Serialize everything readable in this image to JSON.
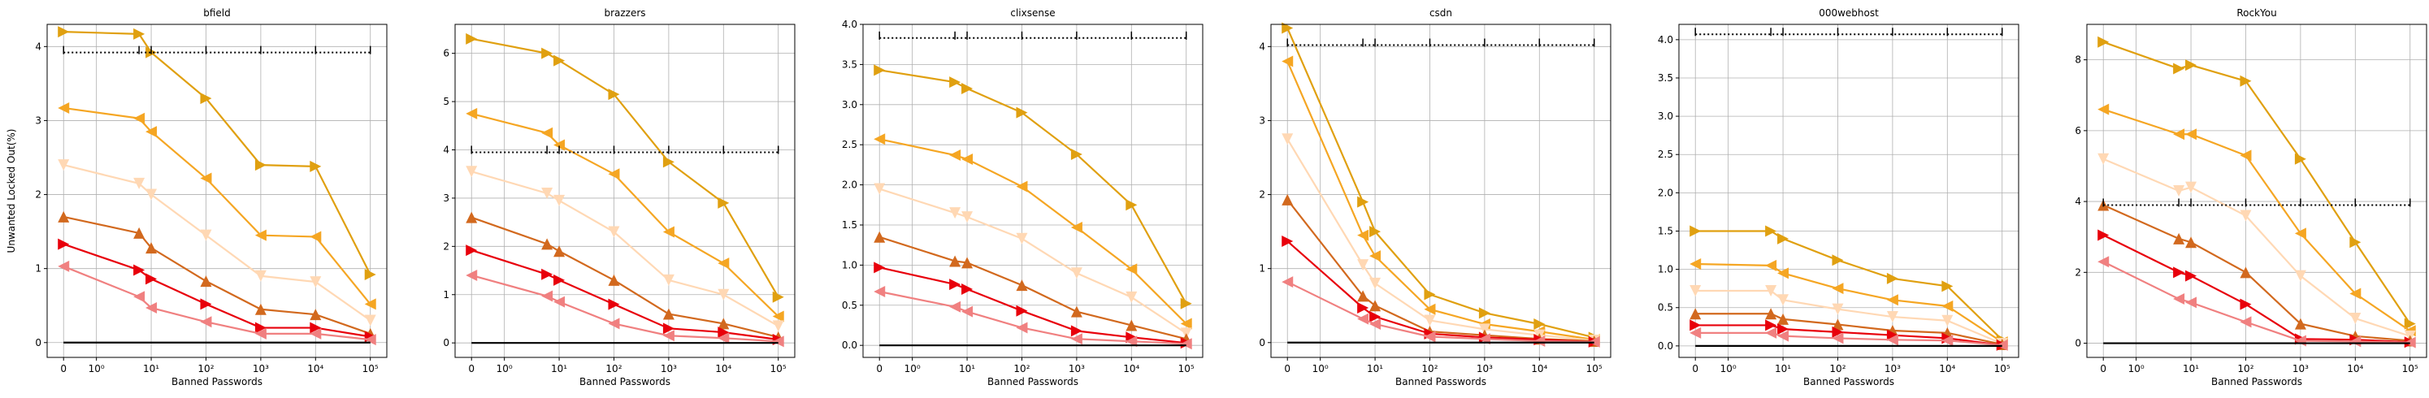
{
  "chart_data": [
    {
      "type": "line",
      "title": "bfield",
      "x_label": "Banned Passwords",
      "y_label": "Unwanted Locked Out(%)",
      "xscale": "symlog",
      "grid": true,
      "x": [
        0,
        6,
        10,
        100,
        1000,
        10000,
        100000
      ],
      "xlim": [
        -0.5,
        200000
      ],
      "xticks": [
        0,
        {
          "value": 1,
          "label": "10⁰"
        },
        {
          "value": 10,
          "label": "10¹"
        },
        {
          "value": 100,
          "label": "10²"
        },
        {
          "value": 1000,
          "label": "10³"
        },
        {
          "value": 10000,
          "label": "10⁴"
        },
        {
          "value": 100000,
          "label": "10⁵"
        }
      ],
      "ylim": [
        -0.2,
        4.3
      ],
      "yticks": [
        0,
        1,
        2,
        3,
        4
      ],
      "series": [
        {
          "color": "#e0a010",
          "marker": ">",
          "linestyle": "solid",
          "values": [
            4.2,
            4.17,
            3.92,
            3.3,
            2.4,
            2.38,
            0.92
          ]
        },
        {
          "color": "#f5a623",
          "marker": "<",
          "linestyle": "solid",
          "values": [
            3.17,
            3.03,
            2.85,
            2.22,
            1.45,
            1.43,
            0.52
          ]
        },
        {
          "color": "#ffd8b4",
          "marker": "v",
          "linestyle": "solid",
          "values": [
            2.4,
            2.15,
            2.0,
            1.45,
            0.9,
            0.82,
            0.3
          ]
        },
        {
          "color": "#d2691e",
          "marker": "^",
          "linestyle": "solid",
          "values": [
            1.7,
            1.48,
            1.28,
            0.83,
            0.45,
            0.38,
            0.12
          ]
        },
        {
          "color": "#e8000b",
          "marker": ">",
          "linestyle": "solid",
          "values": [
            1.33,
            0.98,
            0.86,
            0.52,
            0.2,
            0.2,
            0.08
          ]
        },
        {
          "color": "#f08080",
          "marker": "<",
          "linestyle": "solid",
          "values": [
            1.03,
            0.62,
            0.47,
            0.28,
            0.12,
            0.12,
            0.04
          ]
        },
        {
          "color": "#000000",
          "marker": "|",
          "linestyle": "dotted",
          "values": [
            3.92,
            3.92,
            3.92,
            3.92,
            3.92,
            3.92,
            3.92
          ]
        },
        {
          "color": "#000000",
          "marker": "none",
          "linestyle": "solid",
          "values": [
            0,
            0,
            0,
            0,
            0,
            0,
            0
          ]
        }
      ]
    },
    {
      "type": "line",
      "title": "brazzers",
      "x_label": "Banned Passwords",
      "xscale": "symlog",
      "grid": true,
      "x": [
        0,
        6,
        10,
        100,
        1000,
        10000,
        100000
      ],
      "xlim": [
        -0.5,
        200000
      ],
      "xticks": [
        0,
        {
          "value": 1,
          "label": "10⁰"
        },
        {
          "value": 10,
          "label": "10¹"
        },
        {
          "value": 100,
          "label": "10²"
        },
        {
          "value": 1000,
          "label": "10³"
        },
        {
          "value": 10000,
          "label": "10⁴"
        },
        {
          "value": 100000,
          "label": "10⁵"
        }
      ],
      "ylim": [
        -0.3,
        6.6
      ],
      "yticks": [
        0,
        1,
        2,
        3,
        4,
        5,
        6
      ],
      "series": [
        {
          "color": "#e0a010",
          "marker": ">",
          "linestyle": "solid",
          "values": [
            6.3,
            6.0,
            5.85,
            5.15,
            3.75,
            2.9,
            0.95
          ]
        },
        {
          "color": "#f5a623",
          "marker": "<",
          "linestyle": "solid",
          "values": [
            4.75,
            4.35,
            4.1,
            3.5,
            2.3,
            1.65,
            0.55
          ]
        },
        {
          "color": "#ffd8b4",
          "marker": "v",
          "linestyle": "solid",
          "values": [
            3.55,
            3.1,
            2.95,
            2.3,
            1.3,
            1.0,
            0.35
          ]
        },
        {
          "color": "#d2691e",
          "marker": "^",
          "linestyle": "solid",
          "values": [
            2.6,
            2.05,
            1.9,
            1.3,
            0.6,
            0.4,
            0.12
          ]
        },
        {
          "color": "#e8000b",
          "marker": ">",
          "linestyle": "solid",
          "values": [
            1.92,
            1.42,
            1.3,
            0.8,
            0.3,
            0.22,
            0.07
          ]
        },
        {
          "color": "#f08080",
          "marker": "<",
          "linestyle": "solid",
          "values": [
            1.4,
            0.97,
            0.85,
            0.4,
            0.15,
            0.1,
            0.03
          ]
        },
        {
          "color": "#000000",
          "marker": "|",
          "linestyle": "dotted",
          "values": [
            3.95,
            3.95,
            3.95,
            3.95,
            3.95,
            3.95,
            3.95
          ]
        },
        {
          "color": "#000000",
          "marker": "none",
          "linestyle": "solid",
          "values": [
            0,
            0,
            0,
            0,
            0,
            0,
            0
          ]
        }
      ]
    },
    {
      "type": "line",
      "title": "clixsense",
      "x_label": "Banned Passwords",
      "xscale": "symlog",
      "grid": true,
      "x": [
        0,
        6,
        10,
        100,
        1000,
        10000,
        100000
      ],
      "xlim": [
        -0.5,
        200000
      ],
      "xticks": [
        0,
        {
          "value": 1,
          "label": "10⁰"
        },
        {
          "value": 10,
          "label": "10¹"
        },
        {
          "value": 100,
          "label": "10²"
        },
        {
          "value": 1000,
          "label": "10³"
        },
        {
          "value": 10000,
          "label": "10⁴"
        },
        {
          "value": 100000,
          "label": "10⁵"
        }
      ],
      "ylim": [
        -0.15,
        4.0
      ],
      "yticks": [
        {
          "value": 0,
          "label": "0.0"
        },
        0.5,
        {
          "value": 1,
          "label": "1.0"
        },
        1.5,
        {
          "value": 2,
          "label": "2.0"
        },
        2.5,
        {
          "value": 3,
          "label": "3.0"
        },
        3.5,
        {
          "value": 4,
          "label": "4.0"
        }
      ],
      "series": [
        {
          "color": "#e0a010",
          "marker": ">",
          "linestyle": "solid",
          "values": [
            3.43,
            3.28,
            3.2,
            2.9,
            2.38,
            1.75,
            0.52
          ]
        },
        {
          "color": "#f5a623",
          "marker": "<",
          "linestyle": "solid",
          "values": [
            2.57,
            2.37,
            2.32,
            1.98,
            1.47,
            0.95,
            0.27
          ]
        },
        {
          "color": "#ffd8b4",
          "marker": "v",
          "linestyle": "solid",
          "values": [
            1.95,
            1.65,
            1.6,
            1.33,
            0.9,
            0.6,
            0.15
          ]
        },
        {
          "color": "#d2691e",
          "marker": "^",
          "linestyle": "solid",
          "values": [
            1.35,
            1.05,
            1.03,
            0.75,
            0.42,
            0.25,
            0.08
          ]
        },
        {
          "color": "#e8000b",
          "marker": ">",
          "linestyle": "solid",
          "values": [
            0.97,
            0.76,
            0.7,
            0.43,
            0.18,
            0.1,
            0.03
          ]
        },
        {
          "color": "#f08080",
          "marker": "<",
          "linestyle": "solid",
          "values": [
            0.67,
            0.48,
            0.42,
            0.22,
            0.08,
            0.05,
            0.02
          ]
        },
        {
          "color": "#000000",
          "marker": "|",
          "linestyle": "dotted",
          "values": [
            3.83,
            3.83,
            3.83,
            3.83,
            3.83,
            3.83,
            3.83
          ]
        },
        {
          "color": "#000000",
          "marker": "none",
          "linestyle": "solid",
          "values": [
            0,
            0,
            0,
            0,
            0,
            0,
            0
          ]
        }
      ]
    },
    {
      "type": "line",
      "title": "csdn",
      "x_label": "Banned Passwords",
      "xscale": "symlog",
      "grid": true,
      "x": [
        0,
        6,
        10,
        100,
        1000,
        10000,
        100000
      ],
      "xlim": [
        -0.5,
        200000
      ],
      "xticks": [
        0,
        {
          "value": 1,
          "label": "10⁰"
        },
        {
          "value": 10,
          "label": "10¹"
        },
        {
          "value": 100,
          "label": "10²"
        },
        {
          "value": 1000,
          "label": "10³"
        },
        {
          "value": 10000,
          "label": "10⁴"
        },
        {
          "value": 100000,
          "label": "10⁵"
        }
      ],
      "ylim": [
        -0.2,
        4.3
      ],
      "yticks": [
        0,
        1,
        2,
        3,
        4
      ],
      "series": [
        {
          "color": "#e0a010",
          "marker": ">",
          "linestyle": "solid",
          "values": [
            4.25,
            1.9,
            1.5,
            0.65,
            0.4,
            0.25,
            0.07
          ]
        },
        {
          "color": "#f5a623",
          "marker": "<",
          "linestyle": "solid",
          "values": [
            3.8,
            1.45,
            1.17,
            0.45,
            0.25,
            0.15,
            0.04
          ]
        },
        {
          "color": "#ffd8b4",
          "marker": "v",
          "linestyle": "solid",
          "values": [
            2.75,
            1.05,
            0.8,
            0.3,
            0.18,
            0.1,
            0.03
          ]
        },
        {
          "color": "#d2691e",
          "marker": "^",
          "linestyle": "solid",
          "values": [
            1.93,
            0.63,
            0.5,
            0.15,
            0.1,
            0.05,
            0.02
          ]
        },
        {
          "color": "#e8000b",
          "marker": ">",
          "linestyle": "solid",
          "values": [
            1.37,
            0.47,
            0.35,
            0.12,
            0.07,
            0.04,
            0.01
          ]
        },
        {
          "color": "#f08080",
          "marker": "<",
          "linestyle": "solid",
          "values": [
            0.82,
            0.32,
            0.25,
            0.08,
            0.05,
            0.02,
            0.01
          ]
        },
        {
          "color": "#000000",
          "marker": "|",
          "linestyle": "dotted",
          "values": [
            4.02,
            4.02,
            4.02,
            4.02,
            4.02,
            4.02,
            4.02
          ]
        },
        {
          "color": "#000000",
          "marker": "none",
          "linestyle": "solid",
          "values": [
            0,
            0,
            0,
            0,
            0,
            0,
            0
          ]
        }
      ]
    },
    {
      "type": "line",
      "title": "000webhost",
      "x_label": "Banned Passwords",
      "xscale": "symlog",
      "grid": true,
      "x": [
        0,
        6,
        10,
        100,
        1000,
        10000,
        100000
      ],
      "xlim": [
        -0.5,
        200000
      ],
      "xticks": [
        0,
        {
          "value": 1,
          "label": "10⁰"
        },
        {
          "value": 10,
          "label": "10¹"
        },
        {
          "value": 100,
          "label": "10²"
        },
        {
          "value": 1000,
          "label": "10³"
        },
        {
          "value": 10000,
          "label": "10⁴"
        },
        {
          "value": 100000,
          "label": "10⁵"
        }
      ],
      "ylim": [
        -0.15,
        4.2
      ],
      "yticks": [
        {
          "value": 0,
          "label": "0.0"
        },
        0.5,
        {
          "value": 1,
          "label": "1.0"
        },
        1.5,
        {
          "value": 2,
          "label": "2.0"
        },
        2.5,
        {
          "value": 3,
          "label": "3.0"
        },
        3.5,
        {
          "value": 4,
          "label": "4.0"
        }
      ],
      "series": [
        {
          "color": "#e0a010",
          "marker": ">",
          "linestyle": "solid",
          "values": [
            1.5,
            1.5,
            1.4,
            1.12,
            0.88,
            0.78,
            0.08
          ]
        },
        {
          "color": "#f5a623",
          "marker": "<",
          "linestyle": "solid",
          "values": [
            1.07,
            1.05,
            0.95,
            0.75,
            0.6,
            0.52,
            0.05
          ]
        },
        {
          "color": "#ffd8b4",
          "marker": "v",
          "linestyle": "solid",
          "values": [
            0.72,
            0.72,
            0.6,
            0.48,
            0.38,
            0.33,
            0.03
          ]
        },
        {
          "color": "#d2691e",
          "marker": "^",
          "linestyle": "solid",
          "values": [
            0.42,
            0.42,
            0.35,
            0.28,
            0.2,
            0.17,
            0.02
          ]
        },
        {
          "color": "#e8000b",
          "marker": ">",
          "linestyle": "solid",
          "values": [
            0.27,
            0.27,
            0.22,
            0.18,
            0.14,
            0.1,
            0.01
          ]
        },
        {
          "color": "#f08080",
          "marker": "<",
          "linestyle": "solid",
          "values": [
            0.17,
            0.17,
            0.13,
            0.1,
            0.08,
            0.07,
            0.01
          ]
        },
        {
          "color": "#000000",
          "marker": "|",
          "linestyle": "dotted",
          "values": [
            4.07,
            4.07,
            4.07,
            4.07,
            4.07,
            4.07,
            4.07
          ]
        },
        {
          "color": "#000000",
          "marker": "none",
          "linestyle": "solid",
          "values": [
            0,
            0,
            0,
            0,
            0,
            0,
            0
          ]
        }
      ]
    },
    {
      "type": "line",
      "title": "RockYou",
      "x_label": "Banned Passwords",
      "xscale": "symlog",
      "grid": true,
      "x": [
        0,
        6,
        10,
        100,
        1000,
        10000,
        100000
      ],
      "xlim": [
        -0.5,
        200000
      ],
      "xticks": [
        0,
        {
          "value": 1,
          "label": "10⁰"
        },
        {
          "value": 10,
          "label": "10¹"
        },
        {
          "value": 100,
          "label": "10²"
        },
        {
          "value": 1000,
          "label": "10³"
        },
        {
          "value": 10000,
          "label": "10⁴"
        },
        {
          "value": 100000,
          "label": "10⁵"
        }
      ],
      "ylim": [
        -0.4,
        9.0
      ],
      "yticks": [
        0,
        2,
        4,
        6,
        8
      ],
      "series": [
        {
          "color": "#e0a010",
          "marker": ">",
          "linestyle": "solid",
          "values": [
            8.5,
            7.75,
            7.85,
            7.4,
            5.2,
            2.85,
            0.55
          ]
        },
        {
          "color": "#f5a623",
          "marker": "<",
          "linestyle": "solid",
          "values": [
            6.6,
            5.9,
            5.9,
            5.3,
            3.1,
            1.4,
            0.35
          ]
        },
        {
          "color": "#ffd8b4",
          "marker": "v",
          "linestyle": "solid",
          "values": [
            5.2,
            4.3,
            4.4,
            3.6,
            1.9,
            0.7,
            0.2
          ]
        },
        {
          "color": "#d2691e",
          "marker": "^",
          "linestyle": "solid",
          "values": [
            3.9,
            2.95,
            2.85,
            2.0,
            0.55,
            0.2,
            0.07
          ]
        },
        {
          "color": "#e8000b",
          "marker": ">",
          "linestyle": "solid",
          "values": [
            3.05,
            2.0,
            1.9,
            1.1,
            0.12,
            0.1,
            0.03
          ]
        },
        {
          "color": "#f08080",
          "marker": "<",
          "linestyle": "solid",
          "values": [
            2.3,
            1.25,
            1.15,
            0.6,
            0.07,
            0.05,
            0.02
          ]
        },
        {
          "color": "#000000",
          "marker": "|",
          "linestyle": "dotted",
          "values": [
            3.9,
            3.9,
            3.9,
            3.9,
            3.9,
            3.9,
            3.9
          ]
        },
        {
          "color": "#000000",
          "marker": "none",
          "linestyle": "solid",
          "values": [
            0,
            0,
            0,
            0,
            0,
            0,
            0
          ]
        }
      ]
    }
  ]
}
